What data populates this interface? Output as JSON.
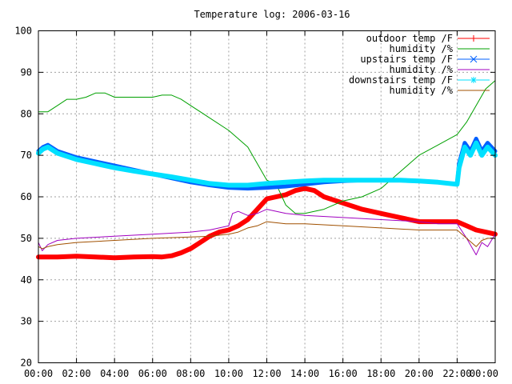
{
  "chart_data": {
    "type": "line",
    "title": "Temperature log: 2006-03-16",
    "xlabel": "",
    "ylabel": "",
    "ylim": [
      20,
      100
    ],
    "xlim": [
      "00:00",
      "24:00"
    ],
    "grid": true,
    "legend_position": "top-right",
    "x_ticks": [
      "00:00",
      "02:00",
      "04:00",
      "06:00",
      "08:00",
      "10:00",
      "12:00",
      "14:00",
      "16:00",
      "18:00",
      "20:00",
      "22:00",
      "00:00"
    ],
    "y_ticks": [
      "20",
      "30",
      "40",
      "50",
      "60",
      "70",
      "80",
      "90",
      "100"
    ],
    "x_unit": "hours",
    "series": [
      {
        "name": "outdoor temp /F",
        "color": "#ff0000",
        "marker": "plus",
        "x": [
          0,
          1,
          2,
          3,
          4,
          5,
          6,
          6.5,
          7,
          7.5,
          8,
          8.5,
          9,
          9.5,
          10,
          10.5,
          11,
          11.5,
          12,
          12.5,
          13,
          13.5,
          14,
          14.5,
          15,
          16,
          17,
          18,
          19,
          20,
          21,
          22,
          22.5,
          23,
          23.5,
          24
        ],
        "y": [
          45.5,
          45.5,
          45.7,
          45.5,
          45.3,
          45.5,
          45.6,
          45.5,
          45.8,
          46.5,
          47.5,
          49,
          50.5,
          51.5,
          52,
          53,
          54.5,
          57,
          59.5,
          60,
          60.5,
          61.5,
          62,
          61.5,
          60,
          58.5,
          57,
          56,
          55,
          54,
          54,
          54,
          53,
          52,
          51.5,
          51
        ]
      },
      {
        "name": "humidity /%",
        "color": "#00a000",
        "marker": "none",
        "x": [
          0,
          0.5,
          1,
          1.5,
          2,
          2.5,
          3,
          3.5,
          4,
          5,
          6,
          6.5,
          7,
          7.5,
          8,
          9,
          10,
          11,
          11.5,
          12,
          12.5,
          13,
          13.5,
          14,
          15,
          16,
          17,
          18,
          18.5,
          19,
          19.5,
          20,
          21,
          22,
          22.5,
          23,
          23.5,
          24
        ],
        "y": [
          80.5,
          80.5,
          82,
          83.5,
          83.5,
          84,
          85,
          85,
          84,
          84,
          84,
          84.5,
          84.5,
          83.5,
          82,
          79,
          76,
          72,
          68,
          64,
          63,
          58,
          56,
          56,
          57,
          59,
          60,
          62,
          64,
          66,
          68,
          70,
          72.5,
          75,
          78,
          82,
          86,
          88
        ]
      },
      {
        "name": "upstairs temp /F",
        "color": "#0060ff",
        "marker": "x",
        "x": [
          0,
          0.25,
          0.5,
          1,
          2,
          3,
          4,
          5,
          6,
          7,
          8,
          9,
          10,
          11,
          12,
          13,
          14,
          15,
          16,
          17,
          18,
          19,
          20,
          21,
          22,
          22.1,
          22.4,
          22.7,
          23,
          23.3,
          23.6,
          24
        ],
        "y": [
          71,
          72,
          72.5,
          71,
          69.5,
          68.5,
          67.5,
          66.5,
          65.5,
          64.5,
          63.5,
          62.8,
          62.2,
          62,
          62.2,
          62.5,
          63,
          63.5,
          63.8,
          64,
          64,
          64,
          63.8,
          63.5,
          63,
          68,
          73,
          71,
          74,
          71,
          73,
          71
        ]
      },
      {
        "name": "humidity /%",
        "color": "#a000c0",
        "marker": "none",
        "x": [
          0,
          0.2,
          0.5,
          1,
          2,
          4,
          6,
          8,
          9,
          10,
          10.2,
          10.5,
          11,
          11.5,
          12,
          13,
          14,
          16,
          18,
          20,
          21,
          22,
          22.5,
          23,
          23.3,
          23.6,
          24
        ],
        "y": [
          49,
          47,
          48.5,
          49.5,
          50,
          50.5,
          51,
          51.5,
          52,
          53,
          56,
          56.5,
          55.5,
          56,
          57,
          56,
          55.5,
          55,
          54.5,
          54,
          53.5,
          53.5,
          50,
          46,
          49,
          48,
          51
        ]
      },
      {
        "name": "downstairs temp /F",
        "color": "#00e0ff",
        "marker": "star",
        "x": [
          0,
          0.25,
          0.5,
          1,
          2,
          3,
          4,
          5,
          6,
          7,
          8,
          9,
          10,
          11,
          12,
          13,
          14,
          15,
          16,
          17,
          18,
          19,
          20,
          21,
          22,
          22.1,
          22.4,
          22.7,
          23,
          23.3,
          23.6,
          24
        ],
        "y": [
          70.5,
          71.5,
          72,
          70.5,
          69,
          68,
          67,
          66.2,
          65.5,
          64.8,
          64,
          63.2,
          62.8,
          62.8,
          63.2,
          63.5,
          63.8,
          64,
          64,
          64,
          64,
          64,
          63.8,
          63.5,
          63,
          67,
          72,
          70,
          73,
          70,
          72,
          70
        ]
      },
      {
        "name": "humidity /%",
        "color": "#a05000",
        "marker": "none",
        "x": [
          0,
          0.2,
          0.5,
          1,
          2,
          4,
          6,
          8,
          9,
          10,
          10.5,
          11,
          11.5,
          12,
          13,
          14,
          16,
          18,
          20,
          21,
          22,
          22.5,
          23,
          23.3,
          23.6,
          24
        ],
        "y": [
          48,
          47.5,
          48,
          48.5,
          49,
          49.5,
          50,
          50.3,
          50.5,
          51,
          51.5,
          52.5,
          53,
          54,
          53.5,
          53.5,
          53,
          52.5,
          52,
          52,
          52,
          50,
          48,
          49.5,
          50,
          50
        ]
      }
    ]
  }
}
